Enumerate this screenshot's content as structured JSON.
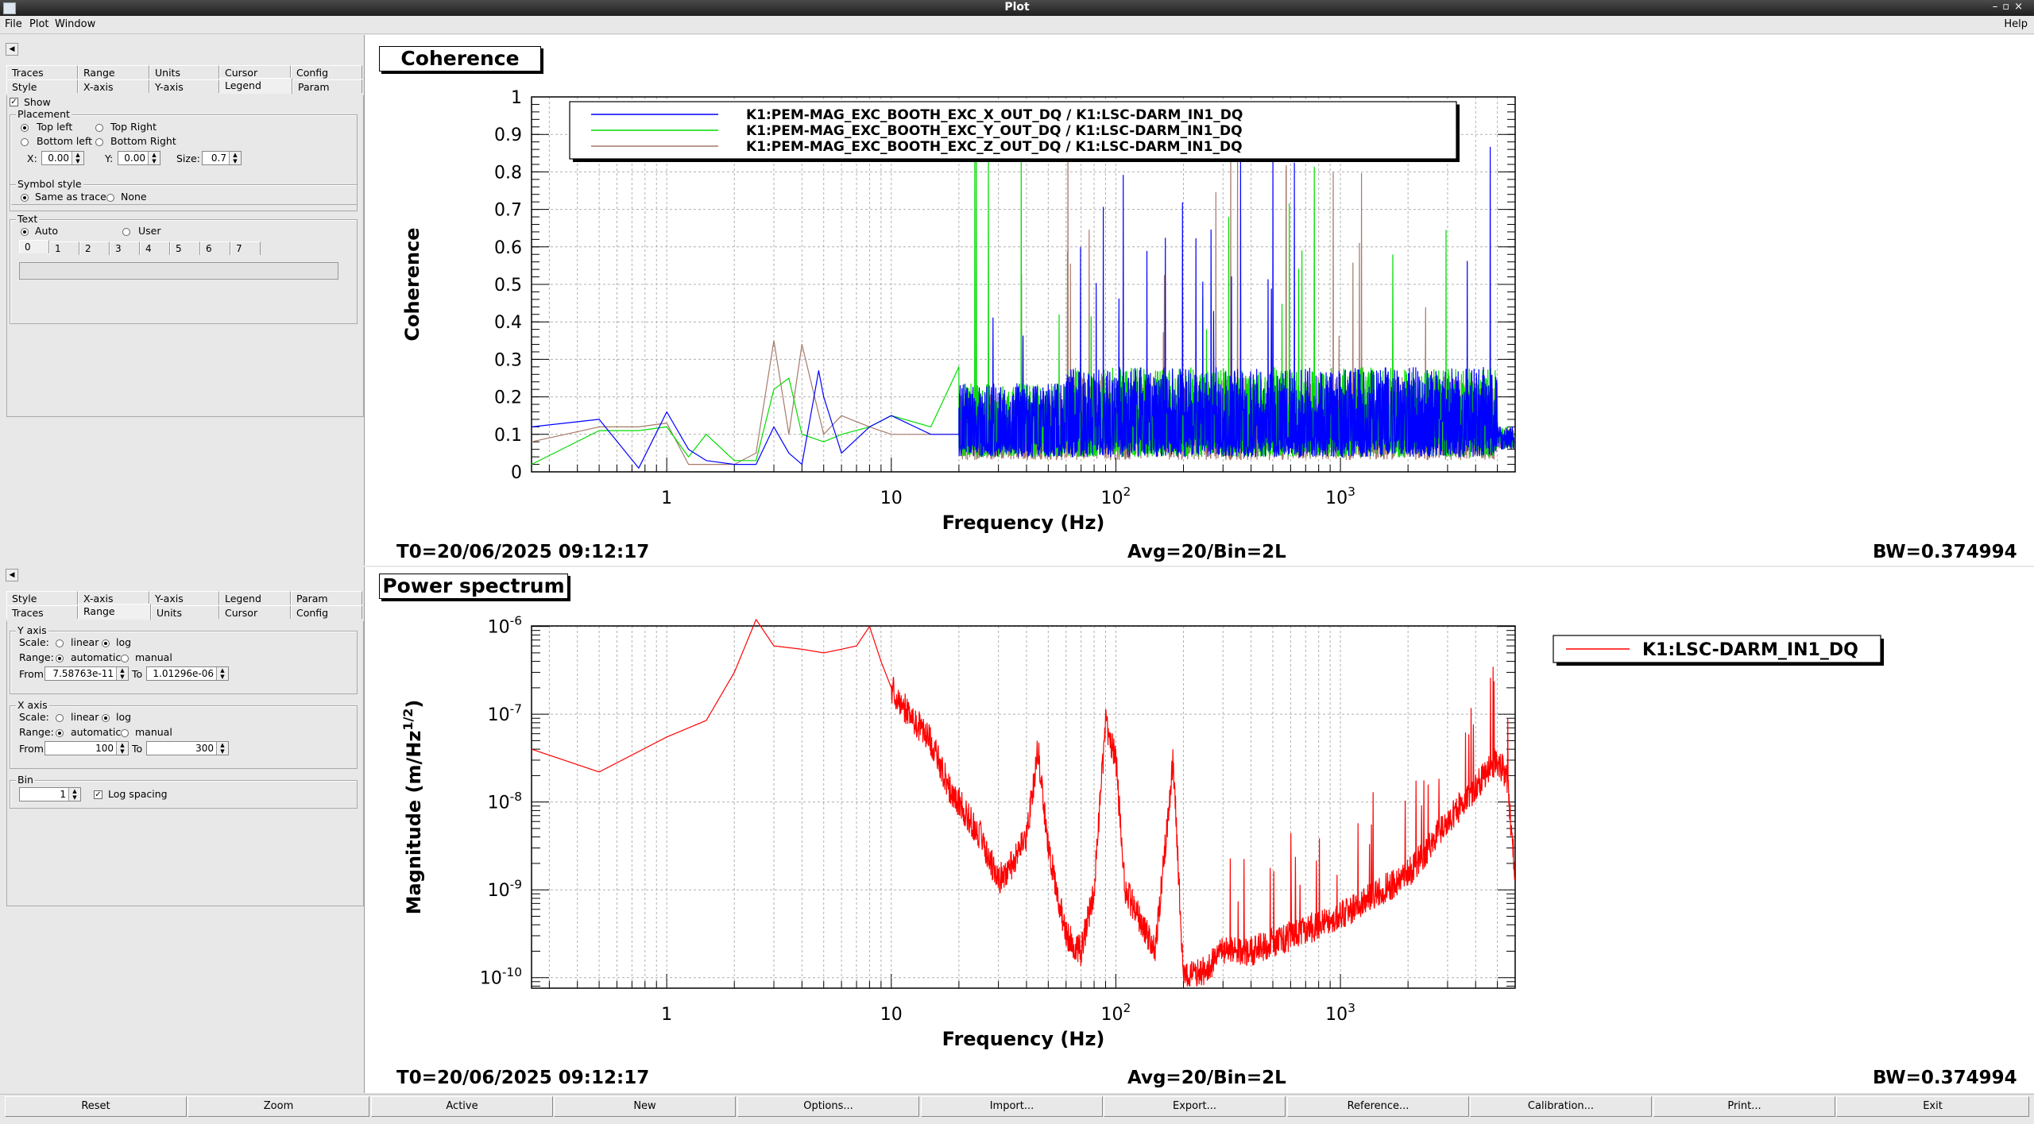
{
  "window": {
    "title": "Plot"
  },
  "menu": {
    "file": "File",
    "plot": "Plot",
    "window": "Window",
    "help": "Help"
  },
  "coherence_panel": {
    "tabs_row1": [
      "Traces",
      "Range",
      "Units",
      "Cursor",
      "Config"
    ],
    "tabs_row2": [
      "Style",
      "X-axis",
      "Y-axis",
      "Legend",
      "Param"
    ],
    "selected_tab": "Legend",
    "show_label": "Show",
    "placement": {
      "title": "Placement",
      "top_left": "Top left",
      "top_right": "Top Right",
      "bottom_left": "Bottom left",
      "bottom_right": "Bottom Right",
      "x_label": "X:",
      "x_value": "0.00",
      "y_label": "Y:",
      "y_value": "0.00",
      "size_label": "Size:",
      "size_value": "0.7"
    },
    "symbol": {
      "title": "Symbol style",
      "same": "Same as trace",
      "none": "None"
    },
    "text": {
      "title": "Text",
      "auto": "Auto",
      "user": "User",
      "index_tabs": [
        "0",
        "1",
        "2",
        "3",
        "4",
        "5",
        "6",
        "7"
      ]
    }
  },
  "power_panel": {
    "tabs_row1": [
      "Style",
      "X-axis",
      "Y-axis",
      "Legend",
      "Param"
    ],
    "tabs_row2": [
      "Traces",
      "Range",
      "Units",
      "Cursor",
      "Config"
    ],
    "selected_tab": "Range",
    "yaxis": {
      "title": "Y axis",
      "scale_label": "Scale:",
      "linear": "linear",
      "log": "log",
      "range_label": "Range:",
      "automatic": "automatic",
      "manual": "manual",
      "from_label": "From",
      "from_value": "7.58763e-11",
      "to_label": "To",
      "to_value": "1.01296e-06"
    },
    "xaxis": {
      "title": "X axis",
      "scale_label": "Scale:",
      "linear": "linear",
      "log": "log",
      "range_label": "Range:",
      "automatic": "automatic",
      "manual": "manual",
      "from_label": "From",
      "from_value": "100",
      "to_label": "To",
      "to_value": "300"
    },
    "bin": {
      "title": "Bin",
      "value": "1",
      "log_spacing": "Log spacing"
    }
  },
  "plots": {
    "coherence": {
      "title": "Coherence",
      "t0": "T0=20/06/2025 09:12:17",
      "avg": "Avg=20/Bin=2L",
      "bw": "BW=0.374994"
    },
    "power": {
      "title": "Power spectrum",
      "t0": "T0=20/06/2025 09:12:17",
      "avg": "Avg=20/Bin=2L",
      "bw": "BW=0.374994"
    }
  },
  "buttons": [
    "Reset",
    "Zoom",
    "Active",
    "New",
    "Options...",
    "Import...",
    "Export...",
    "Reference...",
    "Calibration...",
    "Print...",
    "Exit"
  ],
  "chart_data": [
    {
      "type": "line",
      "title": "Coherence",
      "xlabel": "Frequency (Hz)",
      "ylabel": "Coherence",
      "xscale": "log",
      "xlim": [
        0.25,
        6000
      ],
      "ylim": [
        0,
        1
      ],
      "x_ticks": [
        "1",
        "10",
        "10^2",
        "10^3"
      ],
      "y_ticks": [
        "0",
        "0.1",
        "0.2",
        "0.3",
        "0.4",
        "0.5",
        "0.6",
        "0.7",
        "0.8",
        "0.9",
        "1"
      ],
      "grid": true,
      "legend_position": "top-left",
      "series": [
        {
          "name": "K1:PEM-MAG_EXC_BOOTH_EXC_X_OUT_DQ / K1:LSC-DARM_IN1_DQ",
          "color": "#0000ff",
          "x": [
            0.25,
            0.5,
            0.75,
            1,
            1.25,
            1.5,
            2,
            2.5,
            3,
            3.5,
            4,
            4.75,
            5,
            6,
            8,
            10,
            15,
            20,
            30,
            50,
            60,
            80,
            100,
            200,
            300,
            500,
            1000,
            2000,
            5000
          ],
          "y": [
            0.12,
            0.14,
            0.01,
            0.16,
            0.06,
            0.03,
            0.02,
            0.02,
            0.12,
            0.05,
            0.02,
            0.27,
            0.2,
            0.05,
            0.12,
            0.15,
            0.1,
            0.1,
            0.12,
            0.15,
            1.0,
            0.15,
            0.17,
            0.12,
            0.12,
            0.12,
            0.12,
            0.12,
            0.1
          ]
        },
        {
          "name": "K1:PEM-MAG_EXC_BOOTH_EXC_Y_OUT_DQ / K1:LSC-DARM_IN1_DQ",
          "color": "#00dd00",
          "x": [
            0.25,
            0.5,
            0.75,
            1,
            1.25,
            1.5,
            2,
            2.5,
            3,
            3.5,
            4,
            5,
            6,
            8,
            10,
            15,
            20,
            30,
            50,
            60,
            80,
            100,
            200,
            300,
            500,
            1000,
            2000,
            5000
          ],
          "y": [
            0.02,
            0.11,
            0.11,
            0.12,
            0.04,
            0.1,
            0.03,
            0.03,
            0.22,
            0.25,
            0.1,
            0.08,
            0.1,
            0.12,
            0.15,
            0.12,
            0.28,
            0.25,
            0.55,
            0.3,
            0.8,
            0.25,
            0.8,
            0.45,
            0.8,
            0.55,
            0.45,
            0.1
          ]
        },
        {
          "name": "K1:PEM-MAG_EXC_BOOTH_EXC_Z_OUT_DQ / K1:LSC-DARM_IN1_DQ",
          "color": "#a67a6a",
          "x": [
            0.25,
            0.5,
            0.75,
            1,
            1.25,
            1.5,
            2,
            2.5,
            3,
            3.5,
            4,
            5,
            6,
            8,
            10,
            20,
            50,
            100,
            300,
            1000,
            5000
          ],
          "y": [
            0.08,
            0.12,
            0.12,
            0.13,
            0.02,
            0.02,
            0.02,
            0.05,
            0.35,
            0.1,
            0.34,
            0.1,
            0.15,
            0.12,
            0.1,
            0.1,
            0.2,
            0.2,
            0.2,
            0.15,
            0.1
          ]
        }
      ]
    },
    {
      "type": "line",
      "title": "Power spectrum",
      "xlabel": "Frequency (Hz)",
      "ylabel": "Magnitude (m/Hz^1/2)",
      "xscale": "log",
      "yscale": "log",
      "xlim": [
        0.25,
        6000
      ],
      "ylim": [
        7.58763e-11,
        1.01296e-06
      ],
      "x_ticks": [
        "1",
        "10",
        "10^2",
        "10^3"
      ],
      "y_ticks": [
        "10^-10",
        "10^-9",
        "10^-8",
        "10^-7",
        "10^-6"
      ],
      "grid": true,
      "legend_position": "top-right",
      "series": [
        {
          "name": "K1:LSC-DARM_IN1_DQ",
          "color": "#ff0000",
          "x": [
            0.25,
            0.5,
            1,
            1.5,
            2,
            2.5,
            3,
            4,
            5,
            6,
            7,
            8,
            9,
            10,
            12,
            15,
            18,
            20,
            25,
            30,
            35,
            40,
            45,
            50,
            60,
            70,
            80,
            90,
            100,
            110,
            150,
            180,
            200,
            250,
            300,
            400,
            500,
            700,
            1000,
            2000,
            3000,
            4000,
            5000,
            5500,
            6000
          ],
          "y": [
            4e-08,
            2.2e-08,
            5.5e-08,
            8.5e-08,
            3e-07,
            1.2e-06,
            6e-07,
            5.5e-07,
            5e-07,
            5.5e-07,
            6e-07,
            1e-06,
            4e-07,
            2e-07,
            1e-07,
            5e-08,
            1.5e-08,
            1e-08,
            4e-09,
            1.3e-09,
            2e-09,
            4e-09,
            4e-08,
            3e-09,
            3e-10,
            2e-10,
            1e-09,
            8e-08,
            3e-08,
            1e-09,
            2e-10,
            3e-08,
            1e-10,
            1.2e-10,
            2e-10,
            2e-10,
            2.5e-10,
            3.5e-10,
            5e-10,
            1.5e-09,
            6e-09,
            1.5e-08,
            3e-08,
            2e-08,
            1.5e-09
          ]
        }
      ]
    }
  ]
}
